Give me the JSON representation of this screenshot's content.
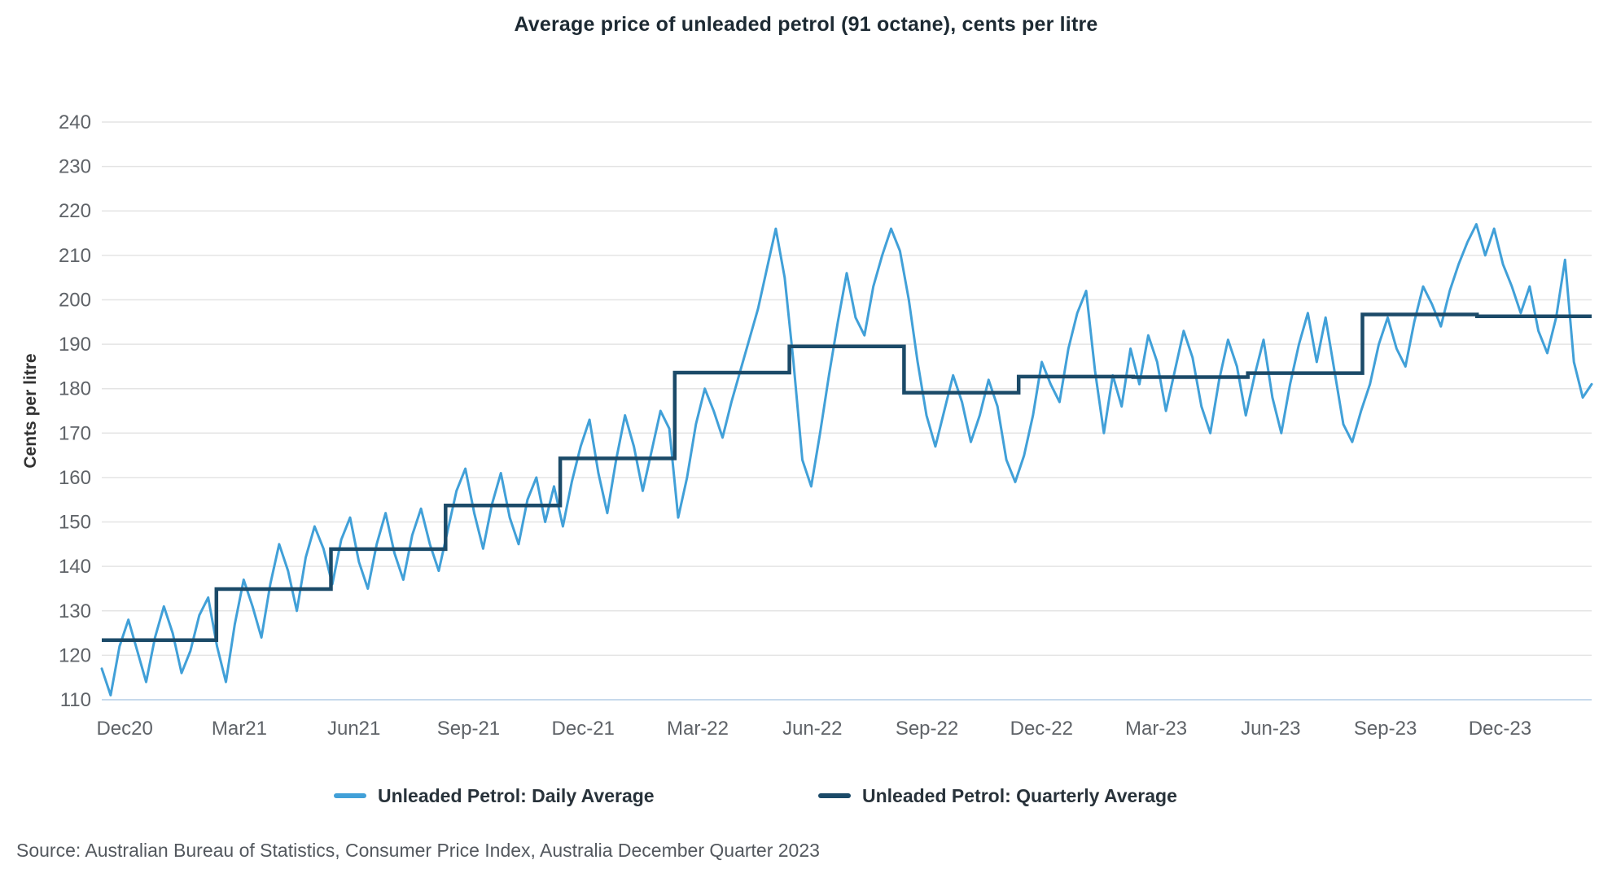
{
  "title": "Average price of unleaded petrol (91 octane), cents per litre",
  "y_axis_title": "Cents per litre",
  "source": "Source: Australian Bureau of Statistics, Consumer Price Index, Australia December Quarter 2023",
  "legend": {
    "daily_label": "Unleaded Petrol: Daily Average",
    "quarterly_label": "Unleaded Petrol: Quarterly Average"
  },
  "colors": {
    "daily": "#41a0d8",
    "quarterly": "#1b4a68",
    "grid": "#e4e4e4",
    "axis_line": "#c7d9ec",
    "tick_text": "#5f6368",
    "axis_title_text": "#333333"
  },
  "chart_data": {
    "type": "line",
    "title": "Average price of unleaded petrol (91 octane), cents per litre",
    "xlabel": "",
    "ylabel": "Cents per litre",
    "ylim": [
      110,
      240
    ],
    "y_ticks": [
      110,
      120,
      130,
      140,
      150,
      160,
      170,
      180,
      190,
      200,
      210,
      220,
      230,
      240
    ],
    "grid": "horizontal",
    "legend_position": "bottom",
    "x_tick_labels": [
      "Dec20",
      "Mar21",
      "Jun21",
      "Sep-21",
      "Dec-21",
      "Mar-22",
      "Jun-22",
      "Sep-22",
      "Dec-22",
      "Mar-23",
      "Jun-23",
      "Sep-23",
      "Dec-23"
    ],
    "series": [
      {
        "name": "Unleaded Petrol: Daily Average",
        "note": "weekly-resolution approximation of the daily line, 13 points per quarter, Dec 2020 - Dec 2023",
        "values": [
          117,
          111,
          122,
          128,
          121,
          114,
          124,
          131,
          125,
          116,
          121,
          129,
          133,
          122,
          114,
          127,
          137,
          131,
          124,
          136,
          145,
          139,
          130,
          142,
          149,
          144,
          136,
          146,
          151,
          141,
          135,
          145,
          152,
          143,
          137,
          147,
          153,
          145,
          139,
          148,
          157,
          162,
          152,
          144,
          154,
          161,
          151,
          145,
          155,
          160,
          150,
          158,
          149,
          159,
          167,
          173,
          161,
          152,
          164,
          174,
          167,
          157,
          166,
          175,
          171,
          151,
          160,
          172,
          180,
          175,
          169,
          177,
          184,
          191,
          198,
          207,
          216,
          205,
          186,
          164,
          158,
          170,
          183,
          195,
          206,
          196,
          192,
          203,
          210,
          216,
          211,
          200,
          186,
          174,
          167,
          175,
          183,
          177,
          168,
          174,
          182,
          176,
          164,
          159,
          165,
          174,
          186,
          181,
          177,
          189,
          197,
          202,
          184,
          170,
          183,
          176,
          189,
          181,
          192,
          186,
          175,
          184,
          193,
          187,
          176,
          170,
          182,
          191,
          185,
          174,
          183,
          191,
          178,
          170,
          181,
          190,
          197,
          186,
          196,
          184,
          172,
          168,
          175,
          181,
          190,
          196,
          189,
          185,
          195,
          203,
          199,
          194,
          202,
          208,
          213,
          217,
          210,
          216,
          208,
          203,
          197,
          203,
          193,
          188,
          196,
          209,
          186,
          178,
          181
        ]
      },
      {
        "name": "Unleaded Petrol: Quarterly Average",
        "quarters": [
          "Dec-20",
          "Mar-21",
          "Jun-21",
          "Sep-21",
          "Dec-21",
          "Mar-22",
          "Jun-22",
          "Sep-22",
          "Dec-22",
          "Mar-23",
          "Jun-23",
          "Sep-23",
          "Dec-23"
        ],
        "values": [
          123.4,
          134.9,
          143.9,
          153.7,
          164.3,
          183.6,
          189.5,
          179.1,
          182.7,
          182.6,
          183.5,
          196.7,
          196.3
        ]
      }
    ]
  }
}
